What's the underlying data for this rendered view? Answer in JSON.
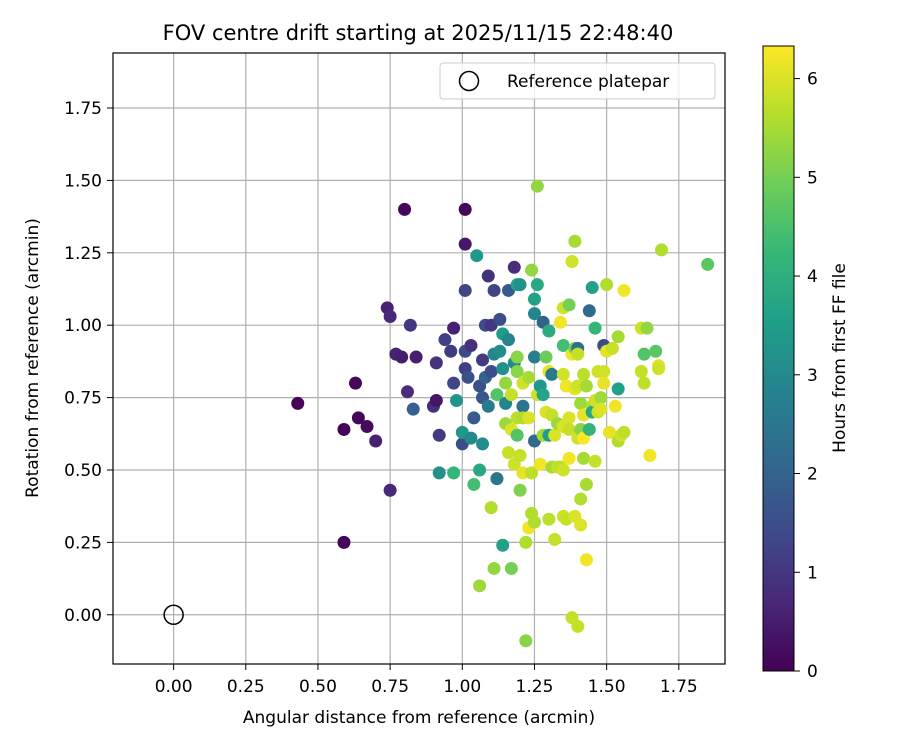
{
  "chart_data": {
    "type": "scatter",
    "title": "FOV centre drift starting at 2025/11/15 22:48:40",
    "xlabel": "Angular distance from reference (arcmin)",
    "ylabel": "Rotation from reference (arcmin)",
    "xlim": [
      -0.21,
      1.91
    ],
    "ylim": [
      -0.17,
      1.94
    ],
    "xticks": [
      0.0,
      0.25,
      0.5,
      0.75,
      1.0,
      1.25,
      1.5,
      1.75
    ],
    "xtick_labels": [
      "0.00",
      "0.25",
      "0.50",
      "0.75",
      "1.00",
      "1.25",
      "1.50",
      "1.75"
    ],
    "yticks": [
      0.0,
      0.25,
      0.5,
      0.75,
      1.0,
      1.25,
      1.5,
      1.75
    ],
    "ytick_labels": [
      "0.00",
      "0.25",
      "0.50",
      "0.75",
      "1.00",
      "1.25",
      "1.50",
      "1.75"
    ],
    "grid": true,
    "legend": {
      "position": "top-right",
      "entries": [
        "Reference platepar"
      ]
    },
    "reference_point": {
      "x": 0.0,
      "y": 0.0,
      "label": "Reference platepar"
    },
    "colorbar": {
      "label": "Hours from first FF file",
      "min": 0,
      "max": 6.33,
      "ticks": [
        0,
        1,
        2,
        3,
        4,
        5,
        6
      ],
      "tick_labels": [
        "0",
        "1",
        "2",
        "3",
        "4",
        "5",
        "6"
      ],
      "colormap": "viridis"
    },
    "points": [
      {
        "x": 0.43,
        "y": 0.73,
        "h": 0.05
      },
      {
        "x": 0.59,
        "y": 0.25,
        "h": 0.05
      },
      {
        "x": 0.59,
        "y": 0.64,
        "h": 0.08
      },
      {
        "x": 0.63,
        "y": 0.8,
        "h": 0.1
      },
      {
        "x": 0.64,
        "y": 0.68,
        "h": 0.1
      },
      {
        "x": 0.67,
        "y": 0.65,
        "h": 0.2
      },
      {
        "x": 0.7,
        "y": 0.6,
        "h": 0.6
      },
      {
        "x": 0.74,
        "y": 1.06,
        "h": 0.6
      },
      {
        "x": 0.75,
        "y": 1.03,
        "h": 0.7
      },
      {
        "x": 0.75,
        "y": 0.43,
        "h": 0.7
      },
      {
        "x": 0.77,
        "y": 0.9,
        "h": 0.6
      },
      {
        "x": 0.79,
        "y": 0.89,
        "h": 0.5
      },
      {
        "x": 0.8,
        "y": 1.4,
        "h": 0.1
      },
      {
        "x": 0.81,
        "y": 0.77,
        "h": 0.8
      },
      {
        "x": 0.82,
        "y": 1.0,
        "h": 1.0
      },
      {
        "x": 0.83,
        "y": 0.71,
        "h": 1.9
      },
      {
        "x": 0.84,
        "y": 0.89,
        "h": 0.5
      },
      {
        "x": 0.9,
        "y": 0.72,
        "h": 0.9
      },
      {
        "x": 0.91,
        "y": 0.74,
        "h": 0.4
      },
      {
        "x": 0.91,
        "y": 0.87,
        "h": 0.9
      },
      {
        "x": 0.92,
        "y": 0.62,
        "h": 1.1
      },
      {
        "x": 0.92,
        "y": 0.49,
        "h": 3.2
      },
      {
        "x": 0.94,
        "y": 0.95,
        "h": 1.2
      },
      {
        "x": 0.96,
        "y": 0.91,
        "h": 1.1
      },
      {
        "x": 0.97,
        "y": 0.99,
        "h": 0.6
      },
      {
        "x": 0.97,
        "y": 0.8,
        "h": 1.3
      },
      {
        "x": 0.97,
        "y": 0.49,
        "h": 4.2
      },
      {
        "x": 0.98,
        "y": 0.74,
        "h": 3.3
      },
      {
        "x": 1.0,
        "y": 0.59,
        "h": 1.5
      },
      {
        "x": 1.0,
        "y": 0.63,
        "h": 3.4
      },
      {
        "x": 1.01,
        "y": 1.4,
        "h": 0.1
      },
      {
        "x": 1.01,
        "y": 1.28,
        "h": 0.4
      },
      {
        "x": 1.01,
        "y": 1.12,
        "h": 1.3
      },
      {
        "x": 1.01,
        "y": 0.91,
        "h": 1.4
      },
      {
        "x": 1.01,
        "y": 0.85,
        "h": 1.2
      },
      {
        "x": 1.02,
        "y": 0.82,
        "h": 1.6
      },
      {
        "x": 1.03,
        "y": 0.93,
        "h": 0.9
      },
      {
        "x": 1.03,
        "y": 0.61,
        "h": 3.0
      },
      {
        "x": 1.04,
        "y": 0.45,
        "h": 4.4
      },
      {
        "x": 1.04,
        "y": 0.68,
        "h": 1.8
      },
      {
        "x": 1.05,
        "y": 1.24,
        "h": 3.4
      },
      {
        "x": 1.06,
        "y": 0.79,
        "h": 1.6
      },
      {
        "x": 1.06,
        "y": 0.5,
        "h": 3.8
      },
      {
        "x": 1.06,
        "y": 0.1,
        "h": 5.4
      },
      {
        "x": 1.07,
        "y": 0.88,
        "h": 1.1
      },
      {
        "x": 1.07,
        "y": 0.75,
        "h": 1.7
      },
      {
        "x": 1.07,
        "y": 0.59,
        "h": 3.1
      },
      {
        "x": 1.08,
        "y": 1.0,
        "h": 1.4
      },
      {
        "x": 1.08,
        "y": 0.82,
        "h": 2.0
      },
      {
        "x": 1.09,
        "y": 1.17,
        "h": 0.9
      },
      {
        "x": 1.09,
        "y": 0.72,
        "h": 2.6
      },
      {
        "x": 1.1,
        "y": 0.37,
        "h": 5.6
      },
      {
        "x": 1.1,
        "y": 0.84,
        "h": 1.5
      },
      {
        "x": 1.1,
        "y": 1.0,
        "h": 1.0
      },
      {
        "x": 1.11,
        "y": 0.16,
        "h": 5.3
      },
      {
        "x": 1.11,
        "y": 1.12,
        "h": 1.3
      },
      {
        "x": 1.11,
        "y": 0.9,
        "h": 2.9
      },
      {
        "x": 1.12,
        "y": 0.76,
        "h": 4.6
      },
      {
        "x": 1.12,
        "y": 0.47,
        "h": 5.0
      },
      {
        "x": 1.12,
        "y": 0.47,
        "h": 2.5
      },
      {
        "x": 1.13,
        "y": 1.02,
        "h": 1.5
      },
      {
        "x": 1.13,
        "y": 0.91,
        "h": 3.1
      },
      {
        "x": 1.14,
        "y": 0.97,
        "h": 3.5
      },
      {
        "x": 1.14,
        "y": 0.85,
        "h": 3.2
      },
      {
        "x": 1.14,
        "y": 0.24,
        "h": 3.6
      },
      {
        "x": 1.15,
        "y": 0.73,
        "h": 2.9
      },
      {
        "x": 1.15,
        "y": 0.66,
        "h": 5.4
      },
      {
        "x": 1.15,
        "y": 0.8,
        "h": 5.3
      },
      {
        "x": 1.16,
        "y": 0.95,
        "h": 2.8
      },
      {
        "x": 1.16,
        "y": 0.56,
        "h": 5.8
      },
      {
        "x": 1.16,
        "y": 1.12,
        "h": 1.8
      },
      {
        "x": 1.17,
        "y": 0.16,
        "h": 5.0
      },
      {
        "x": 1.17,
        "y": 0.76,
        "h": 5.8
      },
      {
        "x": 1.17,
        "y": 0.64,
        "h": 6.0
      },
      {
        "x": 1.18,
        "y": 0.87,
        "h": 3.0
      },
      {
        "x": 1.18,
        "y": 0.52,
        "h": 5.9
      },
      {
        "x": 1.18,
        "y": 1.2,
        "h": 0.8
      },
      {
        "x": 1.19,
        "y": 0.89,
        "h": 5.2
      },
      {
        "x": 1.19,
        "y": 0.84,
        "h": 5.2
      },
      {
        "x": 1.19,
        "y": 1.14,
        "h": 3.6
      },
      {
        "x": 1.19,
        "y": 0.68,
        "h": 5.7
      },
      {
        "x": 1.19,
        "y": 0.62,
        "h": 4.6
      },
      {
        "x": 1.2,
        "y": 0.43,
        "h": 5.1
      },
      {
        "x": 1.2,
        "y": 1.14,
        "h": 3.2
      },
      {
        "x": 1.2,
        "y": 0.55,
        "h": 5.8
      },
      {
        "x": 1.21,
        "y": 0.72,
        "h": 2.5
      },
      {
        "x": 1.21,
        "y": 0.68,
        "h": 5.6
      },
      {
        "x": 1.21,
        "y": 0.49,
        "h": 6.1
      },
      {
        "x": 1.21,
        "y": 0.8,
        "h": 5.9
      },
      {
        "x": 1.22,
        "y": 0.25,
        "h": 5.6
      },
      {
        "x": 1.22,
        "y": -0.09,
        "h": 5.2
      },
      {
        "x": 1.23,
        "y": 0.3,
        "h": 6.2
      },
      {
        "x": 1.23,
        "y": 0.82,
        "h": 5.5
      },
      {
        "x": 1.23,
        "y": 0.68,
        "h": 6.0
      },
      {
        "x": 1.24,
        "y": 1.19,
        "h": 5.3
      },
      {
        "x": 1.24,
        "y": 0.35,
        "h": 5.6
      },
      {
        "x": 1.24,
        "y": 0.49,
        "h": 5.7
      },
      {
        "x": 1.25,
        "y": 1.09,
        "h": 3.6
      },
      {
        "x": 1.25,
        "y": 1.04,
        "h": 2.9
      },
      {
        "x": 1.25,
        "y": 0.89,
        "h": 2.7
      },
      {
        "x": 1.25,
        "y": 0.6,
        "h": 2.2
      },
      {
        "x": 1.25,
        "y": 0.32,
        "h": 5.6
      },
      {
        "x": 1.26,
        "y": 1.48,
        "h": 5.3
      },
      {
        "x": 1.26,
        "y": 1.14,
        "h": 3.8
      },
      {
        "x": 1.26,
        "y": 0.76,
        "h": 5.9
      },
      {
        "x": 1.27,
        "y": 0.79,
        "h": 3.4
      },
      {
        "x": 1.27,
        "y": 0.52,
        "h": 6.2
      },
      {
        "x": 1.28,
        "y": 1.01,
        "h": 2.0
      },
      {
        "x": 1.28,
        "y": 0.62,
        "h": 5.5
      },
      {
        "x": 1.28,
        "y": 0.76,
        "h": 3.7
      },
      {
        "x": 1.29,
        "y": 0.89,
        "h": 4.9
      },
      {
        "x": 1.29,
        "y": 0.7,
        "h": 6.0
      },
      {
        "x": 1.3,
        "y": 0.98,
        "h": 3.9
      },
      {
        "x": 1.3,
        "y": 0.84,
        "h": 6.1
      },
      {
        "x": 1.3,
        "y": 0.33,
        "h": 5.7
      },
      {
        "x": 1.3,
        "y": 0.62,
        "h": 3.5
      },
      {
        "x": 1.31,
        "y": 0.83,
        "h": 2.6
      },
      {
        "x": 1.31,
        "y": 0.69,
        "h": 5.8
      },
      {
        "x": 1.31,
        "y": 0.51,
        "h": 5.5
      },
      {
        "x": 1.32,
        "y": 0.62,
        "h": 6.0
      },
      {
        "x": 1.32,
        "y": 0.26,
        "h": 5.8
      },
      {
        "x": 1.33,
        "y": 0.51,
        "h": 5.8
      },
      {
        "x": 1.33,
        "y": 0.66,
        "h": 5.4
      },
      {
        "x": 1.34,
        "y": 1.01,
        "h": 6.2
      },
      {
        "x": 1.34,
        "y": 0.51,
        "h": 5.7
      },
      {
        "x": 1.35,
        "y": 1.06,
        "h": 5.9
      },
      {
        "x": 1.35,
        "y": 0.93,
        "h": 4.4
      },
      {
        "x": 1.35,
        "y": 0.83,
        "h": 5.9
      },
      {
        "x": 1.35,
        "y": 0.65,
        "h": 6.0
      },
      {
        "x": 1.35,
        "y": 0.34,
        "h": 5.9
      },
      {
        "x": 1.35,
        "y": 0.5,
        "h": 5.9
      },
      {
        "x": 1.36,
        "y": 0.33,
        "h": 5.8
      },
      {
        "x": 1.36,
        "y": 0.79,
        "h": 6.2
      },
      {
        "x": 1.37,
        "y": 1.07,
        "h": 5.0
      },
      {
        "x": 1.37,
        "y": 0.68,
        "h": 6.0
      },
      {
        "x": 1.37,
        "y": 0.64,
        "h": 5.8
      },
      {
        "x": 1.37,
        "y": 0.54,
        "h": 6.2
      },
      {
        "x": 1.38,
        "y": 1.22,
        "h": 5.9
      },
      {
        "x": 1.38,
        "y": 0.9,
        "h": 6.2
      },
      {
        "x": 1.38,
        "y": -0.01,
        "h": 5.8
      },
      {
        "x": 1.39,
        "y": 1.29,
        "h": 5.5
      },
      {
        "x": 1.39,
        "y": 0.92,
        "h": 5.0
      },
      {
        "x": 1.39,
        "y": 0.78,
        "h": 6.1
      },
      {
        "x": 1.39,
        "y": 0.34,
        "h": 6.0
      },
      {
        "x": 1.4,
        "y": -0.04,
        "h": 5.8
      },
      {
        "x": 1.4,
        "y": 0.92,
        "h": 2.3
      },
      {
        "x": 1.4,
        "y": 0.9,
        "h": 5.8
      },
      {
        "x": 1.4,
        "y": 0.79,
        "h": 5.9
      },
      {
        "x": 1.4,
        "y": 0.61,
        "h": 5.9
      },
      {
        "x": 1.41,
        "y": 0.73,
        "h": 5.4
      },
      {
        "x": 1.41,
        "y": 0.64,
        "h": 5.2
      },
      {
        "x": 1.41,
        "y": 0.4,
        "h": 5.6
      },
      {
        "x": 1.41,
        "y": 0.31,
        "h": 6.0
      },
      {
        "x": 1.42,
        "y": 0.69,
        "h": 6.1
      },
      {
        "x": 1.42,
        "y": 0.61,
        "h": 6.3
      },
      {
        "x": 1.42,
        "y": 0.54,
        "h": 5.5
      },
      {
        "x": 1.42,
        "y": 0.83,
        "h": 5.7
      },
      {
        "x": 1.43,
        "y": 0.45,
        "h": 5.5
      },
      {
        "x": 1.43,
        "y": 0.19,
        "h": 6.2
      },
      {
        "x": 1.43,
        "y": 0.79,
        "h": 5.5
      },
      {
        "x": 1.44,
        "y": 1.05,
        "h": 2.2
      },
      {
        "x": 1.44,
        "y": 0.64,
        "h": 4.1
      },
      {
        "x": 1.45,
        "y": 1.13,
        "h": 3.6
      },
      {
        "x": 1.45,
        "y": 0.72,
        "h": 5.6
      },
      {
        "x": 1.45,
        "y": 0.7,
        "h": 3.8
      },
      {
        "x": 1.46,
        "y": 0.99,
        "h": 4.2
      },
      {
        "x": 1.46,
        "y": 0.74,
        "h": 5.9
      },
      {
        "x": 1.46,
        "y": 0.53,
        "h": 5.8
      },
      {
        "x": 1.47,
        "y": 0.84,
        "h": 5.9
      },
      {
        "x": 1.47,
        "y": 0.7,
        "h": 5.9
      },
      {
        "x": 1.48,
        "y": 0.75,
        "h": 5.4
      },
      {
        "x": 1.48,
        "y": 0.71,
        "h": 6.0
      },
      {
        "x": 1.49,
        "y": 0.93,
        "h": 1.4
      },
      {
        "x": 1.49,
        "y": 0.84,
        "h": 5.9
      },
      {
        "x": 1.49,
        "y": 0.8,
        "h": 6.1
      },
      {
        "x": 1.5,
        "y": 1.14,
        "h": 5.6
      },
      {
        "x": 1.5,
        "y": 0.91,
        "h": 6.1
      },
      {
        "x": 1.51,
        "y": 0.63,
        "h": 6.1
      },
      {
        "x": 1.52,
        "y": 0.92,
        "h": 5.8
      },
      {
        "x": 1.53,
        "y": 0.72,
        "h": 6.2
      },
      {
        "x": 1.54,
        "y": 0.96,
        "h": 5.5
      },
      {
        "x": 1.54,
        "y": 0.78,
        "h": 3.6
      },
      {
        "x": 1.54,
        "y": 0.6,
        "h": 5.6
      },
      {
        "x": 1.55,
        "y": 0.62,
        "h": 5.9
      },
      {
        "x": 1.56,
        "y": 0.63,
        "h": 5.7
      },
      {
        "x": 1.56,
        "y": 1.12,
        "h": 6.2
      },
      {
        "x": 1.62,
        "y": 0.99,
        "h": 5.9
      },
      {
        "x": 1.62,
        "y": 0.84,
        "h": 5.8
      },
      {
        "x": 1.63,
        "y": 0.8,
        "h": 5.7
      },
      {
        "x": 1.63,
        "y": 0.9,
        "h": 4.6
      },
      {
        "x": 1.64,
        "y": 0.99,
        "h": 5.3
      },
      {
        "x": 1.65,
        "y": 0.55,
        "h": 6.2
      },
      {
        "x": 1.67,
        "y": 0.91,
        "h": 4.7
      },
      {
        "x": 1.68,
        "y": 0.86,
        "h": 6.0
      },
      {
        "x": 1.68,
        "y": 0.85,
        "h": 5.9
      },
      {
        "x": 1.69,
        "y": 1.26,
        "h": 5.6
      },
      {
        "x": 1.85,
        "y": 1.21,
        "h": 4.7
      }
    ]
  }
}
